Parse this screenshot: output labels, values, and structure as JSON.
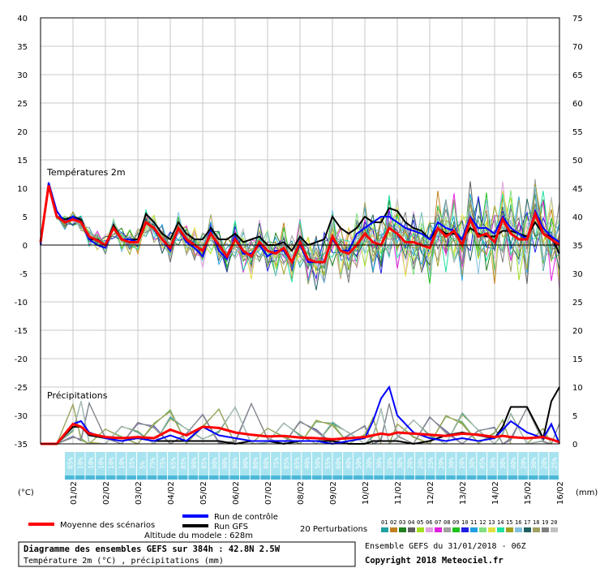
{
  "chart_data": {
    "type": "line",
    "title": "Diagramme des ensembles GEFS sur 384h : 42.8N 2.5W",
    "subtitle": "Température 2m (°C) , précipitations (mm)",
    "left_axis_label": "(°C)",
    "right_axis_label": "(mm)",
    "left_axis": {
      "range": [
        -35,
        40
      ],
      "ticks": [
        40,
        35,
        30,
        25,
        20,
        15,
        10,
        5,
        0,
        -5,
        -10,
        -15,
        -20,
        -25,
        -30,
        -35
      ]
    },
    "right_axis": {
      "range": [
        0,
        75
      ],
      "ticks": [
        75,
        70,
        65,
        60,
        55,
        50,
        45,
        40,
        35,
        30,
        25,
        20,
        15,
        10,
        5,
        0
      ]
    },
    "section_labels": {
      "temperature": "Températures 2m",
      "precipitation": "Précipitations"
    },
    "x_labels": [
      "01/02",
      "02/02",
      "03/02",
      "04/02",
      "05/02",
      "06/02",
      "07/02",
      "08/02",
      "09/02",
      "10/02",
      "11/02",
      "12/02",
      "13/02",
      "14/02",
      "15/02",
      "16/02"
    ],
    "precip_probability": [
      "65%",
      "10%",
      "10%",
      "10%",
      "10%",
      "10%",
      "35%",
      "5%",
      "75%",
      "75%",
      "65%",
      "85%",
      "90%",
      "85%",
      "90%",
      "90%",
      "90%",
      "90%",
      "80%",
      "80%",
      "75%",
      "85%",
      "65%",
      "40%",
      "50%",
      "55%",
      "60%",
      "40%",
      "50%",
      "30%",
      "30%",
      "20%",
      "30%",
      "20%",
      "20%",
      "25%",
      "20%",
      "30%",
      "20%",
      "30%",
      "45%",
      "30%",
      "30%",
      "40%",
      "20%",
      "30%",
      "20%",
      "25%"
    ],
    "temperature": {
      "x_days": [
        -1.0,
        -0.75,
        -0.5,
        -0.25,
        0.0,
        0.25,
        0.5,
        0.75,
        1.0,
        1.25,
        1.5,
        1.75,
        2.0,
        2.25,
        2.5,
        2.75,
        3.0,
        3.25,
        3.5,
        3.75,
        4.0,
        4.25,
        4.5,
        4.75,
        5.0,
        5.25,
        5.5,
        5.75,
        6.0,
        6.25,
        6.5,
        6.75,
        7.0,
        7.25,
        7.5,
        7.75,
        8.0,
        8.25,
        8.5,
        8.75,
        9.0,
        9.25,
        9.5,
        9.75,
        10.0,
        10.25,
        10.5,
        10.75,
        11.0,
        11.25,
        11.5,
        11.75,
        12.0,
        12.25,
        12.5,
        12.75,
        13.0,
        13.25,
        13.5,
        13.75,
        14.0,
        14.25,
        14.5,
        14.75,
        15.0
      ],
      "mean": [
        0.5,
        10.5,
        5.0,
        4.0,
        4.5,
        4.0,
        1.5,
        0.8,
        0.0,
        3.0,
        1.0,
        0.5,
        0.5,
        4.0,
        3.0,
        1.0,
        -0.5,
        3.0,
        1.0,
        0.0,
        -1.0,
        2.0,
        0.0,
        -2.0,
        1.0,
        -1.0,
        -2.0,
        0.5,
        -1.0,
        -1.5,
        -0.5,
        -3.0,
        0.5,
        -2.5,
        -3.0,
        -3.0,
        1.5,
        -1.0,
        -1.5,
        0.0,
        2.0,
        0.5,
        0.0,
        3.0,
        2.0,
        0.5,
        0.5,
        0.0,
        -0.5,
        3.0,
        1.5,
        2.5,
        0.0,
        4.5,
        1.5,
        2.0,
        0.5,
        4.5,
        2.0,
        1.0,
        1.0,
        5.5,
        2.0,
        1.0,
        0.0
      ],
      "control": [
        0.0,
        11.0,
        6.0,
        4.0,
        5.0,
        4.0,
        1.0,
        0.0,
        -0.5,
        3.0,
        1.0,
        1.0,
        0.5,
        4.0,
        3.0,
        1.0,
        -1.0,
        3.0,
        0.5,
        -0.5,
        -2.0,
        2.5,
        -1.0,
        -2.5,
        1.5,
        -1.5,
        -1.5,
        0.0,
        -2.0,
        -1.0,
        -1.0,
        -3.0,
        0.0,
        -3.0,
        -3.0,
        -3.0,
        1.0,
        -1.0,
        -1.0,
        2.0,
        3.0,
        4.0,
        5.0,
        5.0,
        4.0,
        3.0,
        2.5,
        2.0,
        1.0,
        4.0,
        3.0,
        2.5,
        1.0,
        5.0,
        3.0,
        3.0,
        2.0,
        5.0,
        3.0,
        2.0,
        1.0,
        6.0,
        3.0,
        1.5,
        0.5
      ],
      "gfs": [
        0.0,
        11.0,
        5.0,
        4.5,
        5.0,
        4.5,
        1.0,
        1.0,
        0.0,
        3.5,
        1.0,
        1.0,
        1.0,
        5.5,
        4.0,
        2.0,
        1.0,
        4.0,
        2.0,
        1.0,
        1.0,
        3.0,
        1.0,
        1.0,
        2.0,
        0.5,
        1.0,
        1.5,
        0.0,
        0.0,
        0.5,
        -1.0,
        1.5,
        0.0,
        0.5,
        1.0,
        5.0,
        3.0,
        2.0,
        3.0,
        5.0,
        4.0,
        4.0,
        6.5,
        6.0,
        4.0,
        3.0,
        2.5,
        1.0,
        3.0,
        2.0,
        2.0,
        1.0,
        3.0,
        2.0,
        1.5,
        1.5,
        2.5,
        2.5,
        2.0,
        1.5,
        4.0,
        2.0,
        1.5,
        -1.5
      ]
    },
    "precipitation": {
      "x_days": [
        -1.0,
        -0.5,
        0.0,
        0.25,
        0.5,
        1.0,
        1.5,
        2.0,
        2.5,
        3.0,
        3.5,
        4.0,
        4.5,
        5.0,
        5.5,
        6.0,
        6.5,
        7.0,
        7.5,
        8.0,
        8.5,
        9.0,
        9.25,
        9.5,
        9.75,
        10.0,
        10.5,
        11.0,
        11.5,
        12.0,
        12.5,
        13.0,
        13.25,
        13.5,
        14.0,
        14.5,
        14.75,
        15.0
      ],
      "mean": [
        0.0,
        0.0,
        3.5,
        3.0,
        1.8,
        1.2,
        1.0,
        1.2,
        1.0,
        2.5,
        1.5,
        3.0,
        2.8,
        2.0,
        1.6,
        1.3,
        1.4,
        1.1,
        1.0,
        0.8,
        1.0,
        1.2,
        1.5,
        1.8,
        1.6,
        2.0,
        1.8,
        1.6,
        1.4,
        1.8,
        1.6,
        1.2,
        1.4,
        1.2,
        1.0,
        1.2,
        0.8,
        0.3
      ],
      "control": [
        0.0,
        0.0,
        3.5,
        4.0,
        2.0,
        1.0,
        0.5,
        1.0,
        0.5,
        1.5,
        0.5,
        3.0,
        1.5,
        1.0,
        0.5,
        0.5,
        0.5,
        0.5,
        0.5,
        0.0,
        0.5,
        1.0,
        4.0,
        8.0,
        10.0,
        5.0,
        2.0,
        1.0,
        0.5,
        1.0,
        0.5,
        1.0,
        2.5,
        4.0,
        2.0,
        1.0,
        3.5,
        0.0
      ],
      "gfs": [
        0.0,
        0.0,
        3.0,
        3.0,
        1.5,
        1.0,
        1.0,
        1.0,
        0.5,
        0.5,
        0.5,
        0.5,
        0.5,
        0.0,
        0.5,
        0.5,
        0.0,
        0.5,
        0.5,
        0.5,
        0.0,
        0.0,
        0.5,
        0.5,
        0.5,
        0.5,
        0.0,
        0.5,
        1.5,
        2.0,
        1.5,
        1.0,
        3.0,
        6.5,
        6.5,
        1.0,
        7.5,
        10.0
      ]
    }
  },
  "legend": {
    "mean_label": "Moyenne des scénarios",
    "control_label": "Run de contrôle",
    "gfs_label": "Run GFS",
    "perturbations_label": "20 Perturbations",
    "perturbation_numbers": [
      "01",
      "02",
      "03",
      "04",
      "05",
      "06",
      "07",
      "08",
      "09",
      "10",
      "11",
      "12",
      "13",
      "14",
      "15",
      "16",
      "17",
      "18",
      "19",
      "20"
    ],
    "perturbation_colors": [
      "#20a0a0",
      "#c08020",
      "#208020",
      "#606060",
      "#a0e020",
      "#e0a0e0",
      "#e020e0",
      "#a0a0a0",
      "#20c020",
      "#2020e0",
      "#20a0e0",
      "#80e080",
      "#e0e040",
      "#20e0a0",
      "#a0a020",
      "#80c0e0",
      "#206060",
      "#a0a060",
      "#808080",
      "#c0c0c0"
    ]
  },
  "colors": {
    "mean": "#ff0000",
    "control": "#0000ff",
    "gfs": "#000000",
    "prob_box": "#a8e4f0",
    "prob_box_dark": "#4cb8d8"
  },
  "footer": {
    "altitude": "Altitude du modele : 628m",
    "title": "Diagramme des ensembles GEFS sur 384h : 42.8N 2.5W",
    "subtitle": "Température 2m (°C) , précipitations (mm)",
    "run_info": "Ensemble GEFS du 31/01/2018 - 06Z",
    "copyright": "Copyright 2018 Meteociel.fr"
  }
}
